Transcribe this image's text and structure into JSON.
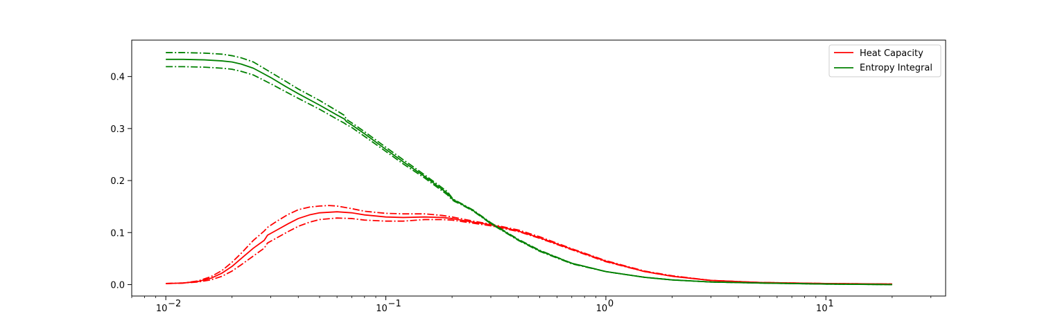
{
  "chart_data": {
    "type": "line",
    "x_scale": "log",
    "xlim": [
      0.007,
      35
    ],
    "ylim": [
      -0.022,
      0.47
    ],
    "x_ticks": [
      {
        "value": 0.01,
        "base": "10",
        "exp": "−2"
      },
      {
        "value": 0.1,
        "base": "10",
        "exp": "−1"
      },
      {
        "value": 1,
        "base": "10",
        "exp": "0"
      },
      {
        "value": 10,
        "base": "10",
        "exp": "1"
      }
    ],
    "y_ticks": [
      {
        "value": 0.0,
        "label": "0.0"
      },
      {
        "value": 0.1,
        "label": "0.1"
      },
      {
        "value": 0.2,
        "label": "0.2"
      },
      {
        "value": 0.3,
        "label": "0.3"
      },
      {
        "value": 0.4,
        "label": "0.4"
      }
    ],
    "legend": {
      "position": "top-right",
      "entries": [
        {
          "label": "Heat Capacity",
          "color": "#ff0000"
        },
        {
          "label": "Entropy Integral",
          "color": "#008000"
        }
      ]
    },
    "series": [
      {
        "name": "Heat Capacity",
        "color": "#ff0000",
        "dash": "solid",
        "x": [
          0.01,
          0.012,
          0.014,
          0.016,
          0.018,
          0.02,
          0.022,
          0.025,
          0.028,
          0.029,
          0.032,
          0.036,
          0.04,
          0.045,
          0.05,
          0.06,
          0.07,
          0.08,
          0.1,
          0.12,
          0.15,
          0.18,
          0.2,
          0.25,
          0.3,
          0.4,
          0.5,
          0.7,
          1,
          1.5,
          2,
          3,
          5,
          10,
          20
        ],
        "y": [
          0.002,
          0.003,
          0.006,
          0.012,
          0.022,
          0.035,
          0.05,
          0.07,
          0.085,
          0.095,
          0.105,
          0.117,
          0.127,
          0.134,
          0.138,
          0.14,
          0.138,
          0.134,
          0.13,
          0.129,
          0.13,
          0.129,
          0.127,
          0.12,
          0.115,
          0.103,
          0.09,
          0.068,
          0.045,
          0.025,
          0.016,
          0.008,
          0.004,
          0.002,
          0.001
        ]
      },
      {
        "name": "",
        "color": "#ff0000",
        "dash": "dashdot",
        "x": [
          0.01,
          0.012,
          0.014,
          0.016,
          0.018,
          0.02,
          0.022,
          0.025,
          0.028,
          0.029,
          0.032,
          0.036,
          0.04,
          0.045,
          0.05,
          0.055,
          0.06,
          0.07,
          0.08,
          0.1,
          0.12,
          0.15,
          0.18,
          0.2,
          0.25,
          0.3,
          0.4,
          0.5,
          0.7,
          1,
          1.5,
          2,
          3,
          5,
          10,
          20
        ],
        "y": [
          0.002,
          0.003,
          0.007,
          0.015,
          0.027,
          0.043,
          0.06,
          0.085,
          0.103,
          0.11,
          0.122,
          0.135,
          0.144,
          0.149,
          0.151,
          0.152,
          0.151,
          0.146,
          0.141,
          0.137,
          0.136,
          0.136,
          0.133,
          0.13,
          0.122,
          0.116,
          0.105,
          0.092,
          0.069,
          0.046,
          0.026,
          0.017,
          0.008,
          0.004,
          0.002,
          0.001
        ]
      },
      {
        "name": "",
        "color": "#ff0000",
        "dash": "dashdot",
        "x": [
          0.01,
          0.012,
          0.014,
          0.016,
          0.018,
          0.02,
          0.022,
          0.025,
          0.028,
          0.029,
          0.032,
          0.036,
          0.04,
          0.045,
          0.05,
          0.06,
          0.07,
          0.08,
          0.1,
          0.12,
          0.15,
          0.18,
          0.2,
          0.25,
          0.3,
          0.4,
          0.5,
          0.7,
          1,
          1.5,
          2,
          3,
          5,
          10,
          20
        ],
        "y": [
          0.002,
          0.003,
          0.005,
          0.009,
          0.016,
          0.026,
          0.038,
          0.055,
          0.07,
          0.08,
          0.09,
          0.102,
          0.112,
          0.12,
          0.125,
          0.128,
          0.127,
          0.124,
          0.122,
          0.122,
          0.125,
          0.125,
          0.124,
          0.118,
          0.113,
          0.102,
          0.089,
          0.067,
          0.044,
          0.025,
          0.016,
          0.008,
          0.004,
          0.002,
          0.001
        ]
      },
      {
        "name": "Entropy Integral",
        "color": "#008000",
        "dash": "solid",
        "x": [
          0.01,
          0.012,
          0.015,
          0.018,
          0.02,
          0.022,
          0.025,
          0.03,
          0.035,
          0.04,
          0.05,
          0.06,
          0.065,
          0.066,
          0.07,
          0.08,
          0.1,
          0.12,
          0.15,
          0.19,
          0.2,
          0.205,
          0.22,
          0.25,
          0.3,
          0.4,
          0.5,
          0.7,
          1,
          1.5,
          2,
          3,
          5,
          10,
          20
        ],
        "y": [
          0.433,
          0.433,
          0.432,
          0.43,
          0.428,
          0.424,
          0.416,
          0.398,
          0.381,
          0.367,
          0.345,
          0.326,
          0.318,
          0.314,
          0.307,
          0.29,
          0.26,
          0.236,
          0.208,
          0.176,
          0.165,
          0.162,
          0.155,
          0.142,
          0.118,
          0.086,
          0.065,
          0.041,
          0.025,
          0.014,
          0.009,
          0.005,
          0.003,
          0.001,
          0.0
        ]
      },
      {
        "name": "",
        "color": "#008000",
        "dash": "dashdot",
        "x": [
          0.01,
          0.012,
          0.015,
          0.018,
          0.02,
          0.022,
          0.025,
          0.03,
          0.035,
          0.04,
          0.05,
          0.06,
          0.065,
          0.066,
          0.07,
          0.08,
          0.1,
          0.12,
          0.15,
          0.19,
          0.2,
          0.205,
          0.22,
          0.25,
          0.3,
          0.4,
          0.5,
          0.7,
          1,
          1.5,
          2,
          3,
          5,
          10,
          20
        ],
        "y": [
          0.446,
          0.446,
          0.445,
          0.443,
          0.44,
          0.436,
          0.428,
          0.408,
          0.391,
          0.376,
          0.354,
          0.334,
          0.325,
          0.318,
          0.311,
          0.294,
          0.264,
          0.24,
          0.211,
          0.179,
          0.167,
          0.163,
          0.156,
          0.143,
          0.119,
          0.087,
          0.066,
          0.041,
          0.025,
          0.014,
          0.009,
          0.005,
          0.003,
          0.001,
          0.0
        ]
      },
      {
        "name": "",
        "color": "#008000",
        "dash": "dashdot",
        "x": [
          0.01,
          0.012,
          0.015,
          0.018,
          0.02,
          0.022,
          0.025,
          0.03,
          0.035,
          0.04,
          0.05,
          0.06,
          0.065,
          0.066,
          0.07,
          0.08,
          0.1,
          0.12,
          0.15,
          0.19,
          0.2,
          0.205,
          0.22,
          0.25,
          0.3,
          0.4,
          0.5,
          0.7,
          1,
          1.5,
          2,
          3,
          5,
          10,
          20
        ],
        "y": [
          0.419,
          0.419,
          0.418,
          0.416,
          0.414,
          0.41,
          0.403,
          0.386,
          0.371,
          0.358,
          0.337,
          0.318,
          0.31,
          0.308,
          0.302,
          0.285,
          0.256,
          0.232,
          0.205,
          0.173,
          0.163,
          0.16,
          0.154,
          0.141,
          0.117,
          0.085,
          0.064,
          0.04,
          0.025,
          0.014,
          0.009,
          0.005,
          0.003,
          0.001,
          0.0
        ]
      }
    ]
  }
}
